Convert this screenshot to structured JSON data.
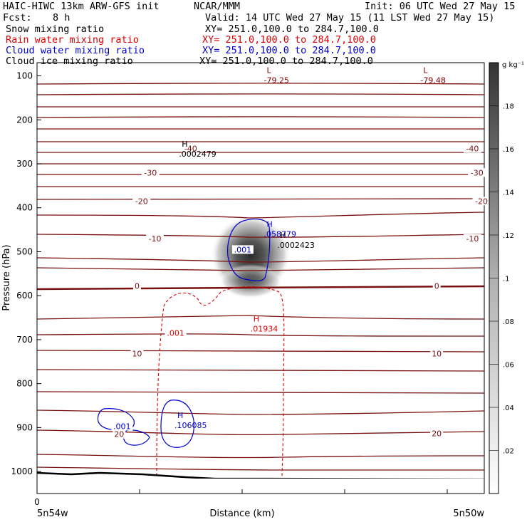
{
  "header": {
    "model": "HAIC-HIWC 13km ARW-GFS init",
    "org": "NCAR/MMM",
    "init": "Init: 06 UTC Wed 27 May 15",
    "fcst_label": "Fcst:",
    "fcst_value": "8 h",
    "valid": "Valid: 14 UTC Wed 27 May 15 (11 LST Wed 27 May 15)",
    "fields": [
      {
        "name": "Snow mixing ratio",
        "xy": "XY= 251.0,100.0 to 284.7,100.0",
        "color": "#000000"
      },
      {
        "name": "Rain water mixing ratio",
        "xy": "XY= 251.0,100.0 to 284.7,100.0",
        "color": "#e00000"
      },
      {
        "name": "Cloud water mixing ratio",
        "xy": "XY= 251.0,100.0 to 284.7,100.0",
        "color": "#0000d0"
      },
      {
        "name": "Cloud ice mixing ratio",
        "xy": "XY= 251.0,100.0 to 284.7,100.0",
        "color": "#000000"
      }
    ]
  },
  "chart_data": {
    "type": "contour",
    "xlabel": "Distance (km)",
    "ylabel": "Pressure (hPa)",
    "x_tick_labels": [
      "0"
    ],
    "x_end_labels": [
      "5n54w",
      "5n50w"
    ],
    "y_ticks": [
      100,
      200,
      300,
      400,
      500,
      600,
      700,
      800,
      900,
      1000
    ],
    "ylim": [
      1050,
      70
    ],
    "colorbar": {
      "unit": "g kg⁻¹",
      "ticks": [
        ".02",
        ".04",
        ".06",
        ".08",
        ".1",
        ".12",
        ".14",
        ".16",
        ".18"
      ],
      "range": [
        0,
        0.2
      ]
    },
    "temperature_contour_labels": [
      {
        "value": "-40",
        "x": 0.35,
        "p": 265
      },
      {
        "value": "-40",
        "x": 0.98,
        "p": 265
      },
      {
        "value": "-30",
        "x": 0.26,
        "p": 320
      },
      {
        "value": "-30",
        "x": 0.99,
        "p": 320
      },
      {
        "value": "-20",
        "x": 0.24,
        "p": 385
      },
      {
        "value": "-20",
        "x": 1.0,
        "p": 385
      },
      {
        "value": "-10",
        "x": 0.27,
        "p": 470
      },
      {
        "value": "-10",
        "x": 0.98,
        "p": 470
      },
      {
        "value": "0",
        "x": 0.23,
        "p": 578
      },
      {
        "value": "0",
        "x": 0.9,
        "p": 578
      },
      {
        "value": "10",
        "x": 0.23,
        "p": 732
      },
      {
        "value": "10",
        "x": 0.9,
        "p": 732
      },
      {
        "value": "20",
        "x": 0.19,
        "p": 915
      },
      {
        "value": "20",
        "x": 0.9,
        "p": 913
      }
    ],
    "extrema": [
      {
        "type": "L",
        "value": "-79.25",
        "x": 0.52,
        "p": 100,
        "color": "#800000"
      },
      {
        "type": "L",
        "value": "-79.48",
        "x": 0.87,
        "p": 100,
        "color": "#800000"
      },
      {
        "type": "H",
        "value": ".0002479",
        "x": 0.33,
        "p": 268,
        "color": "#000000"
      },
      {
        "type": "H",
        "value": ".0002423",
        "x": 0.55,
        "p": 475,
        "color": "#000000"
      },
      {
        "type": "H",
        "value": ".058779",
        "x": 0.52,
        "p": 450,
        "color": "#0000d0"
      },
      {
        "type": "H",
        "value": ".01934",
        "x": 0.49,
        "p": 665,
        "color": "#e00000"
      },
      {
        "type": "H",
        "value": ".106085",
        "x": 0.32,
        "p": 885,
        "color": "#0000d0"
      }
    ],
    "contour_value_labels": [
      {
        "value": ".001",
        "color": "#0000d0",
        "x": 0.46,
        "p": 495
      },
      {
        "value": ".001",
        "color": "#e00000",
        "x": 0.31,
        "p": 685
      },
      {
        "value": ".001",
        "color": "#0000d0",
        "x": 0.19,
        "p": 897
      }
    ]
  }
}
